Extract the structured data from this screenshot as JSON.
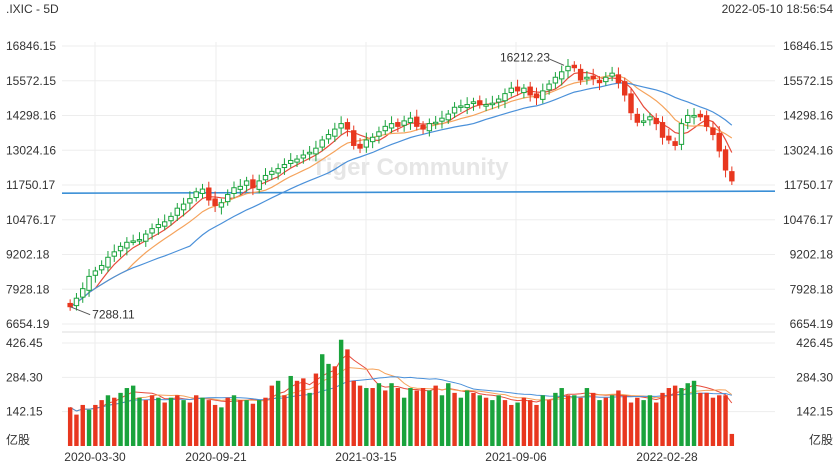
{
  "header": {
    "symbol_label": ".IXIC - 5D",
    "timestamp": "2022-05-10 18:56:54"
  },
  "watermark": "Tiger Community",
  "chart_data": [
    {
      "type": "candlestick",
      "title": ".IXIC - 5D",
      "price_ticks": [
        "16846.15",
        "15572.15",
        "14298.16",
        "13024.16",
        "11750.17",
        "10476.17",
        "9202.18",
        "7928.18",
        "6654.19"
      ],
      "ylim": [
        6654.19,
        16846.15
      ],
      "x_ticks": [
        "2020-03-30",
        "2020-09-21",
        "2021-03-15",
        "2021-09-06",
        "2022-02-28"
      ],
      "annotations": {
        "high_label": "16212.23",
        "low_label": "7288.11"
      },
      "horizontal_line": 11450,
      "colors": {
        "up": "#1aa33c",
        "down": "#e8371f",
        "ma_red": "#e74c3c",
        "ma_orange": "#f5a35c",
        "ma_blue": "#4a90d9",
        "hline": "#3a8fd6"
      },
      "series_close": [
        7288,
        7600,
        7950,
        8400,
        8600,
        8800,
        9100,
        9300,
        9500,
        9650,
        9700,
        9750,
        9950,
        10150,
        10300,
        10400,
        10600,
        10900,
        11050,
        11250,
        11500,
        11600,
        11200,
        11000,
        11100,
        11400,
        11650,
        11700,
        11900,
        11650,
        11900,
        12100,
        12250,
        12350,
        12500,
        12650,
        12700,
        12850,
        12950,
        13100,
        13400,
        13600,
        13800,
        14000,
        13800,
        13200,
        13100,
        13400,
        13500,
        13700,
        13900,
        14000,
        13900,
        14100,
        14200,
        13900,
        13800,
        14000,
        14050,
        14200,
        14350,
        14600,
        14650,
        14700,
        14800,
        14700,
        14700,
        14750,
        14900,
        15100,
        15300,
        15200,
        15300,
        15050,
        14950,
        15200,
        15450,
        15700,
        15900,
        16100,
        16050,
        15600,
        15700,
        15650,
        15500,
        15700,
        15850,
        15500,
        15050,
        14400,
        14050,
        14100,
        14250,
        14000,
        13500,
        13400,
        13200,
        14000,
        14300,
        14300,
        14250,
        13900,
        13600,
        13000,
        12300,
        11900
      ],
      "volume_ticks": [
        "426.45",
        "284.30",
        "142.15"
      ],
      "volume_unit": "亿股",
      "ylim_volume": [
        0,
        426.45
      ],
      "volume": [
        160,
        130,
        170,
        150,
        170,
        190,
        210,
        200,
        220,
        240,
        250,
        200,
        190,
        210,
        200,
        180,
        200,
        210,
        190,
        180,
        210,
        200,
        190,
        170,
        160,
        200,
        210,
        190,
        190,
        175,
        190,
        200,
        250,
        270,
        210,
        290,
        270,
        280,
        220,
        300,
        380,
        340,
        330,
        440,
        400,
        270,
        250,
        240,
        240,
        260,
        230,
        260,
        240,
        200,
        240,
        230,
        240,
        230,
        250,
        210,
        260,
        220,
        200,
        230,
        220,
        210,
        200,
        190,
        210,
        190,
        170,
        180,
        200,
        190,
        170,
        210,
        190,
        220,
        240,
        210,
        210,
        200,
        240,
        220,
        190,
        200,
        210,
        230,
        210,
        180,
        200,
        190,
        210,
        180,
        220,
        240,
        250,
        240,
        260,
        270,
        220,
        220,
        200,
        210,
        210,
        50
      ],
      "volume_up": [
        false,
        false,
        false,
        true,
        false,
        false,
        true,
        false,
        true,
        true,
        true,
        true,
        false,
        false,
        true,
        false,
        true,
        false,
        true,
        false,
        false,
        true,
        false,
        false,
        true,
        false,
        true,
        false,
        true,
        false,
        true,
        false,
        false,
        true,
        false,
        true,
        false,
        false,
        true,
        false,
        true,
        true,
        false,
        true,
        false,
        false,
        false,
        true,
        false,
        true,
        false,
        true,
        false,
        true,
        true,
        false,
        false,
        true,
        false,
        true,
        true,
        false,
        true,
        true,
        false,
        true,
        false,
        true,
        true,
        false,
        false,
        true,
        false,
        false,
        false,
        true,
        false,
        true,
        true,
        false,
        true,
        false,
        true,
        false,
        true,
        false,
        true,
        false,
        false,
        false,
        false,
        true,
        true,
        false,
        false,
        false,
        false,
        true,
        true,
        true,
        false,
        false,
        false,
        false,
        false,
        false
      ]
    }
  ]
}
